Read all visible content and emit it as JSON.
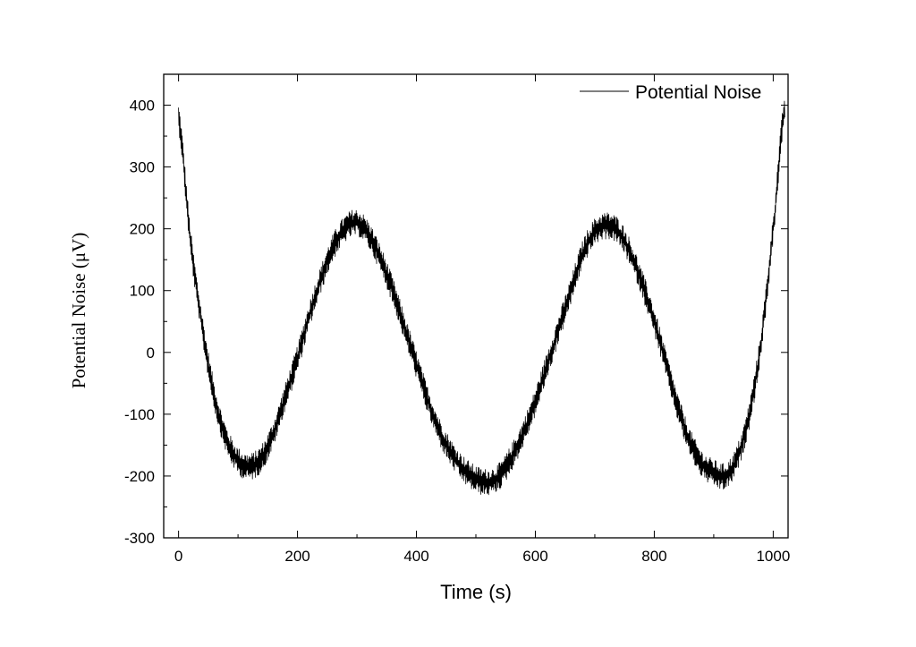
{
  "chart_data": {
    "type": "line",
    "title": "",
    "xlabel": "Time (s)",
    "ylabel": "Potential Noise (μV)",
    "xlim": [
      -25,
      1025
    ],
    "ylim": [
      -300,
      450
    ],
    "x_ticks": [
      0,
      200,
      400,
      600,
      800,
      1000
    ],
    "x_tick_labels": [
      "0",
      "200",
      "400",
      "600",
      "800",
      "1000"
    ],
    "y_ticks": [
      -300,
      -200,
      -100,
      0,
      100,
      200,
      300,
      400
    ],
    "y_tick_labels": [
      "-300",
      "-200",
      "-100",
      "0",
      "100",
      "200",
      "300",
      "400"
    ],
    "grid": false,
    "legend": {
      "position": "top-right",
      "entries": [
        "Potential Noise"
      ]
    },
    "colors": {
      "line": "#000000",
      "axes": "#000000",
      "background": "#ffffff"
    },
    "series": [
      {
        "name": "Potential Noise",
        "x": [
          0,
          20,
          40,
          60,
          80,
          100,
          120,
          140,
          160,
          180,
          200,
          220,
          240,
          260,
          280,
          300,
          320,
          340,
          360,
          380,
          400,
          420,
          440,
          460,
          480,
          500,
          520,
          540,
          560,
          580,
          600,
          620,
          640,
          660,
          680,
          700,
          720,
          740,
          760,
          780,
          800,
          820,
          840,
          860,
          880,
          900,
          920,
          940,
          960,
          980,
          1000,
          1020
        ],
        "y": [
          380,
          180,
          40,
          -70,
          -140,
          -175,
          -185,
          -170,
          -130,
          -70,
          -10,
          60,
          120,
          170,
          200,
          210,
          190,
          150,
          100,
          40,
          -20,
          -80,
          -130,
          -165,
          -190,
          -205,
          -210,
          -200,
          -170,
          -130,
          -80,
          -20,
          40,
          100,
          160,
          195,
          205,
          195,
          160,
          110,
          50,
          -20,
          -90,
          -145,
          -180,
          -195,
          -200,
          -170,
          -100,
          20,
          200,
          400
        ]
      }
    ],
    "noise_amplitude": 22
  }
}
